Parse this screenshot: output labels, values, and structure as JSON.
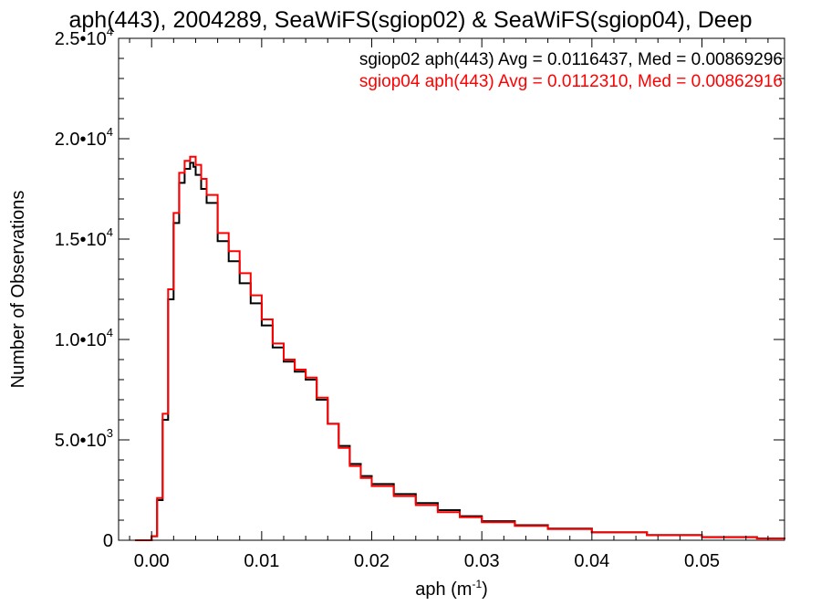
{
  "chart_data": {
    "type": "line",
    "title": "aph(443), 2004289, SeaWiFS(sgiop02) & SeaWiFS(sgiop04), Deep",
    "xlabel": "aph (m",
    "xlabel_sup": "-1",
    "xlabel_close": ")",
    "ylabel": "Number of Observations",
    "xlim": [
      -0.003,
      0.0575
    ],
    "ylim": [
      0,
      25000
    ],
    "x_ticks": [
      0.0,
      0.01,
      0.02,
      0.03,
      0.04,
      0.05
    ],
    "x_tick_labels": [
      "0.00",
      "0.01",
      "0.02",
      "0.03",
      "0.04",
      "0.05"
    ],
    "y_ticks": [
      0,
      5000,
      10000,
      15000,
      20000,
      25000
    ],
    "y_tick_labels": [
      {
        "base": "0",
        "exp": ""
      },
      {
        "base": "5.0•10",
        "exp": "3"
      },
      {
        "base": "1.0•10",
        "exp": "4"
      },
      {
        "base": "1.5•10",
        "exp": "4"
      },
      {
        "base": "2.0•10",
        "exp": "4"
      },
      {
        "base": "2.5•10",
        "exp": "4"
      }
    ],
    "grid": false,
    "legend_position": "top-right",
    "series": [
      {
        "name": "sgiop02 aph(443) Avg = 0.0116437, Med = 0.00869296",
        "color": "#000000",
        "x": [
          -0.0015,
          0.0,
          0.0005,
          0.001,
          0.0015,
          0.002,
          0.0025,
          0.003,
          0.0035,
          0.0038,
          0.004,
          0.0045,
          0.005,
          0.006,
          0.007,
          0.008,
          0.009,
          0.01,
          0.011,
          0.012,
          0.013,
          0.014,
          0.015,
          0.016,
          0.017,
          0.018,
          0.019,
          0.02,
          0.022,
          0.024,
          0.026,
          0.028,
          0.03,
          0.033,
          0.036,
          0.04,
          0.045,
          0.05,
          0.055,
          0.0575
        ],
        "y": [
          0,
          200,
          2000,
          6000,
          12000,
          15800,
          17800,
          18500,
          18800,
          18600,
          18200,
          17500,
          16800,
          14900,
          13900,
          12800,
          11800,
          10700,
          9600,
          8900,
          8400,
          8000,
          7000,
          5800,
          4700,
          3800,
          3200,
          2800,
          2300,
          1850,
          1500,
          1200,
          950,
          750,
          580,
          400,
          260,
          160,
          90,
          60
        ]
      },
      {
        "name": "sgiop04 aph(443) Avg = 0.0112310, Med = 0.00862916",
        "color": "#ff0000",
        "x": [
          -0.0015,
          0.0,
          0.0005,
          0.001,
          0.0015,
          0.002,
          0.0025,
          0.003,
          0.0035,
          0.0038,
          0.004,
          0.0045,
          0.005,
          0.006,
          0.007,
          0.008,
          0.009,
          0.01,
          0.011,
          0.012,
          0.013,
          0.014,
          0.015,
          0.016,
          0.017,
          0.018,
          0.019,
          0.02,
          0.022,
          0.024,
          0.026,
          0.028,
          0.03,
          0.033,
          0.036,
          0.04,
          0.045,
          0.05,
          0.055,
          0.0575
        ],
        "y": [
          0,
          200,
          2100,
          6300,
          12500,
          16300,
          18300,
          18900,
          19100,
          19100,
          18700,
          18000,
          17200,
          15300,
          14400,
          13300,
          12200,
          11000,
          9800,
          9000,
          8500,
          8100,
          7100,
          5800,
          4600,
          3700,
          3100,
          2700,
          2200,
          1750,
          1400,
          1150,
          900,
          720,
          560,
          390,
          250,
          150,
          85,
          55
        ]
      }
    ]
  }
}
